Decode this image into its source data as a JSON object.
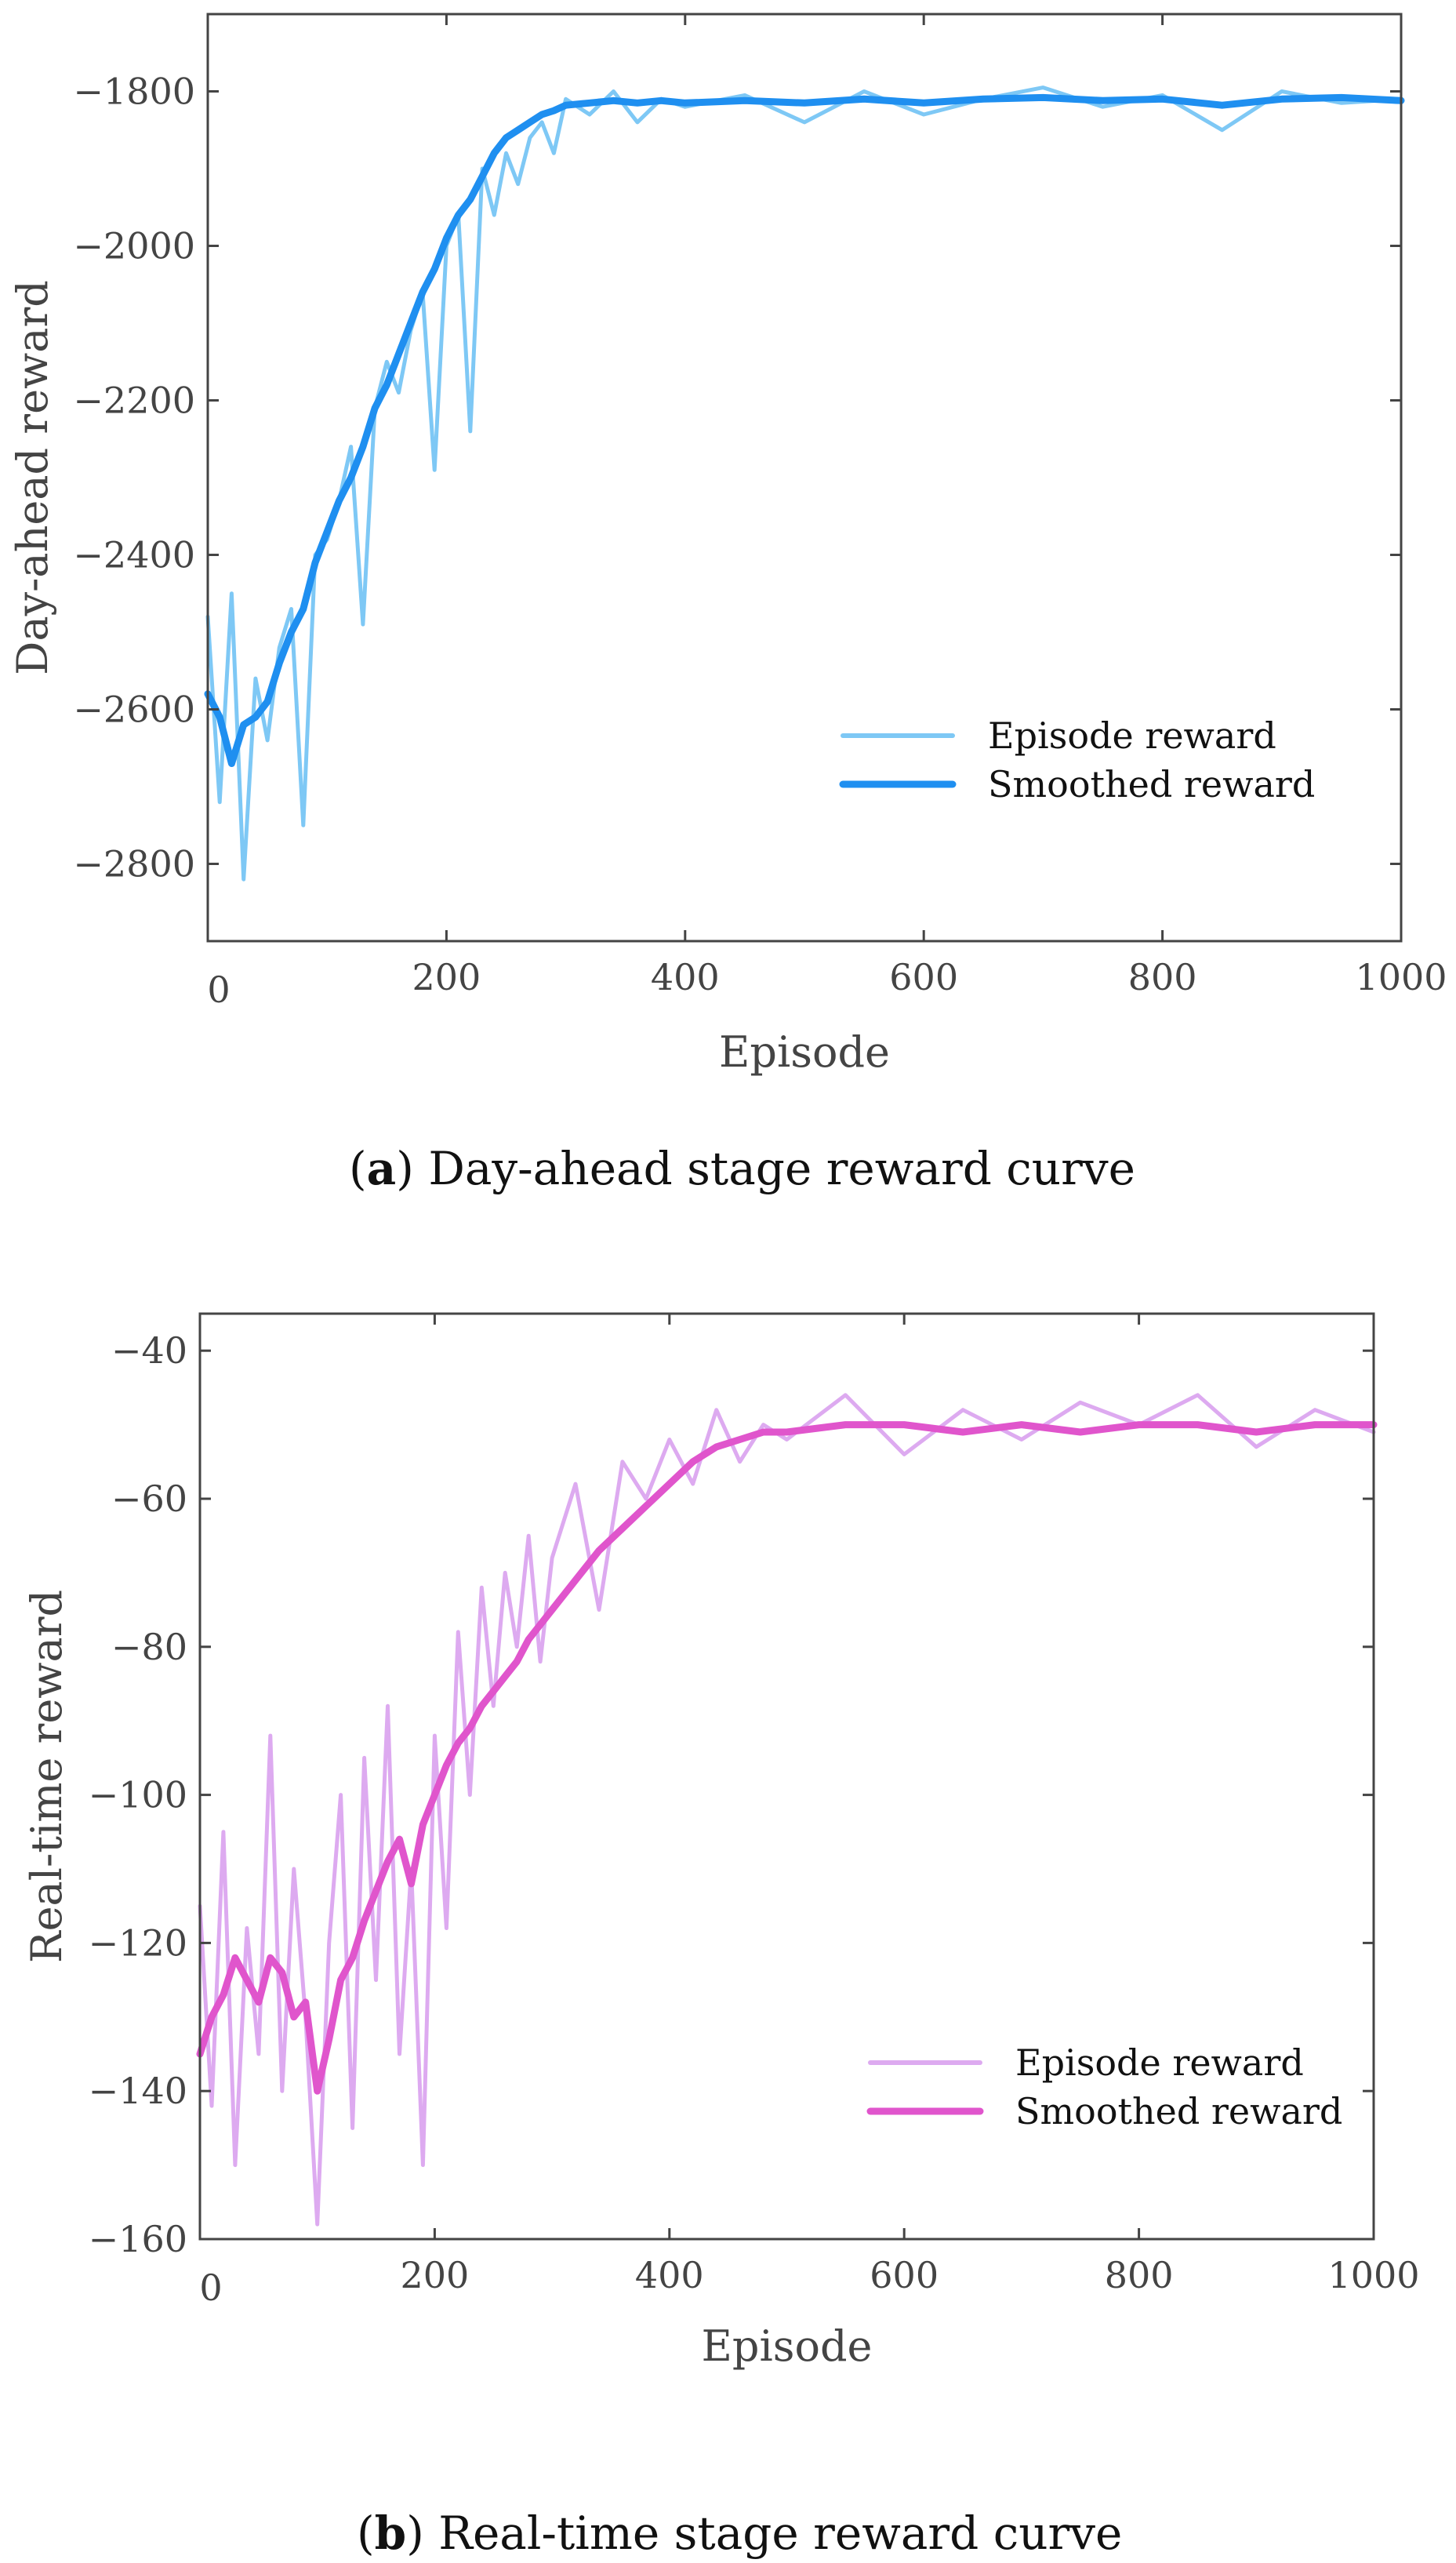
{
  "chart_data": [
    {
      "id": "a",
      "type": "line",
      "caption_tag": "a",
      "caption_text": "Day-ahead stage reward curve",
      "xlabel": "Episode",
      "ylabel": "Day-ahead reward",
      "xlim": [
        0,
        1000
      ],
      "ylim": [
        -2900,
        -1700
      ],
      "xticks": [
        0,
        200,
        400,
        600,
        800,
        1000
      ],
      "yticks": [
        -2800,
        -2600,
        -2400,
        -2200,
        -2000,
        -1800
      ],
      "xtick_labels": [
        "0",
        "200",
        "400",
        "600",
        "800",
        "1000"
      ],
      "ytick_labels": [
        "−2800",
        "−2600",
        "−2400",
        "−2200",
        "−2000",
        "−1800"
      ],
      "grid": false,
      "legend_position": "lower-right",
      "series": [
        {
          "name": "Episode reward",
          "color": "#7ec8f5",
          "x": [
            0,
            10,
            20,
            30,
            40,
            50,
            60,
            70,
            80,
            90,
            100,
            110,
            120,
            130,
            140,
            150,
            160,
            170,
            180,
            190,
            200,
            210,
            220,
            230,
            240,
            250,
            260,
            270,
            280,
            290,
            300,
            320,
            340,
            360,
            380,
            400,
            450,
            500,
            550,
            600,
            650,
            700,
            750,
            800,
            850,
            900,
            950,
            1000
          ],
          "values": [
            -2480,
            -2720,
            -2450,
            -2820,
            -2560,
            -2640,
            -2520,
            -2470,
            -2750,
            -2400,
            -2380,
            -2330,
            -2260,
            -2490,
            -2210,
            -2150,
            -2190,
            -2110,
            -2060,
            -2290,
            -2000,
            -1960,
            -2240,
            -1900,
            -1960,
            -1880,
            -1920,
            -1860,
            -1840,
            -1880,
            -1810,
            -1830,
            -1800,
            -1840,
            -1810,
            -1820,
            -1805,
            -1840,
            -1800,
            -1830,
            -1810,
            -1795,
            -1820,
            -1805,
            -1850,
            -1800,
            -1815,
            -1810
          ]
        },
        {
          "name": "Smoothed reward",
          "color": "#1f8ff0",
          "x": [
            0,
            10,
            20,
            30,
            40,
            50,
            60,
            70,
            80,
            90,
            100,
            110,
            120,
            130,
            140,
            150,
            160,
            170,
            180,
            190,
            200,
            210,
            220,
            230,
            240,
            250,
            260,
            270,
            280,
            290,
            300,
            320,
            340,
            360,
            380,
            400,
            450,
            500,
            550,
            600,
            650,
            700,
            750,
            800,
            850,
            900,
            950,
            1000
          ],
          "values": [
            -2580,
            -2610,
            -2670,
            -2620,
            -2610,
            -2590,
            -2540,
            -2500,
            -2470,
            -2410,
            -2370,
            -2330,
            -2300,
            -2260,
            -2210,
            -2180,
            -2140,
            -2100,
            -2060,
            -2030,
            -1990,
            -1960,
            -1940,
            -1910,
            -1880,
            -1860,
            -1850,
            -1840,
            -1830,
            -1825,
            -1818,
            -1815,
            -1812,
            -1815,
            -1812,
            -1815,
            -1812,
            -1815,
            -1810,
            -1815,
            -1810,
            -1808,
            -1812,
            -1810,
            -1818,
            -1810,
            -1808,
            -1812
          ]
        }
      ]
    },
    {
      "id": "b",
      "type": "line",
      "caption_tag": "b",
      "caption_text": "Real-time stage reward curve",
      "xlabel": "Episode",
      "ylabel": "Real-time reward",
      "xlim": [
        0,
        1000
      ],
      "ylim": [
        -160,
        -35
      ],
      "xticks": [
        0,
        200,
        400,
        600,
        800,
        1000
      ],
      "yticks": [
        -160,
        -140,
        -120,
        -100,
        -80,
        -60,
        -40
      ],
      "xtick_labels": [
        "0",
        "200",
        "400",
        "600",
        "800",
        "1000"
      ],
      "ytick_labels": [
        "−160",
        "−140",
        "−120",
        "−100",
        "−80",
        "−60",
        "−40"
      ],
      "grid": false,
      "legend_position": "lower-right",
      "series": [
        {
          "name": "Episode reward",
          "color": "#ddaaf0",
          "x": [
            0,
            10,
            20,
            30,
            40,
            50,
            60,
            70,
            80,
            90,
            100,
            110,
            120,
            130,
            140,
            150,
            160,
            170,
            180,
            190,
            200,
            210,
            220,
            230,
            240,
            250,
            260,
            270,
            280,
            290,
            300,
            320,
            340,
            360,
            380,
            400,
            420,
            440,
            460,
            480,
            500,
            550,
            600,
            650,
            700,
            750,
            800,
            850,
            900,
            950,
            1000
          ],
          "values": [
            -115,
            -142,
            -105,
            -150,
            -118,
            -135,
            -92,
            -140,
            -110,
            -130,
            -158,
            -120,
            -100,
            -145,
            -95,
            -125,
            -88,
            -135,
            -110,
            -150,
            -92,
            -118,
            -78,
            -100,
            -72,
            -88,
            -70,
            -80,
            -65,
            -82,
            -68,
            -58,
            -75,
            -55,
            -60,
            -52,
            -58,
            -48,
            -55,
            -50,
            -52,
            -46,
            -54,
            -48,
            -52,
            -47,
            -50,
            -46,
            -53,
            -48,
            -51
          ]
        },
        {
          "name": "Smoothed reward",
          "color": "#e055cc",
          "x": [
            0,
            10,
            20,
            30,
            40,
            50,
            60,
            70,
            80,
            90,
            100,
            110,
            120,
            130,
            140,
            150,
            160,
            170,
            180,
            190,
            200,
            210,
            220,
            230,
            240,
            250,
            260,
            270,
            280,
            290,
            300,
            320,
            340,
            360,
            380,
            400,
            420,
            440,
            460,
            480,
            500,
            550,
            600,
            650,
            700,
            750,
            800,
            850,
            900,
            950,
            1000
          ],
          "values": [
            -135,
            -130,
            -127,
            -122,
            -125,
            -128,
            -122,
            -124,
            -130,
            -128,
            -140,
            -133,
            -125,
            -122,
            -117,
            -113,
            -109,
            -106,
            -112,
            -104,
            -100,
            -96,
            -93,
            -91,
            -88,
            -86,
            -84,
            -82,
            -79,
            -77,
            -75,
            -71,
            -67,
            -64,
            -61,
            -58,
            -55,
            -53,
            -52,
            -51,
            -51,
            -50,
            -50,
            -51,
            -50,
            -51,
            -50,
            -50,
            -51,
            -50,
            -50
          ]
        }
      ]
    }
  ]
}
